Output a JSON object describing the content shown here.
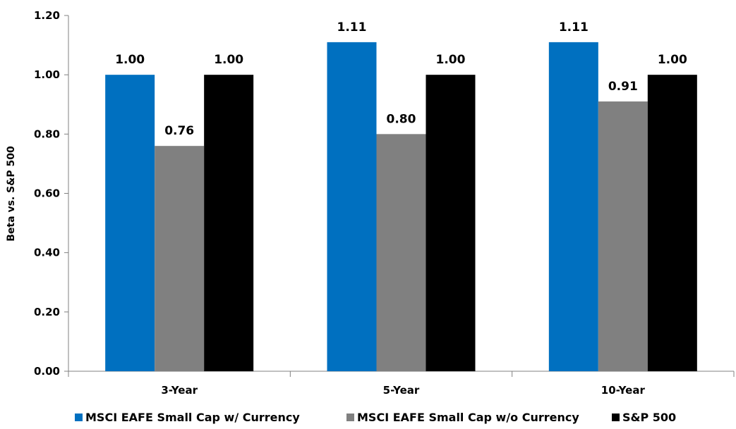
{
  "chart_data": {
    "type": "bar",
    "categories": [
      "3-Year",
      "5-Year",
      "10-Year"
    ],
    "series": [
      {
        "name": "MSCI EAFE Small Cap w/ Currency",
        "values": [
          1.0,
          1.11,
          1.11
        ],
        "labels": [
          "1.00",
          "1.11",
          "1.11"
        ],
        "color": "#0070C0"
      },
      {
        "name": "MSCI EAFE Small Cap w/o Currency",
        "values": [
          0.76,
          0.8,
          0.91
        ],
        "labels": [
          "0.76",
          "0.80",
          "0.91"
        ],
        "color": "#808080"
      },
      {
        "name": "S&P 500",
        "values": [
          1.0,
          1.0,
          1.0
        ],
        "labels": [
          "1.00",
          "1.00",
          "1.00"
        ],
        "color": "#000000"
      }
    ],
    "ylabel": "Beta vs. S&P 500",
    "ylim": [
      0,
      1.2
    ],
    "yticks": [
      "0.00",
      "0.20",
      "0.40",
      "0.60",
      "0.80",
      "1.00",
      "1.20"
    ],
    "grid": false,
    "legend_position": "bottom"
  }
}
